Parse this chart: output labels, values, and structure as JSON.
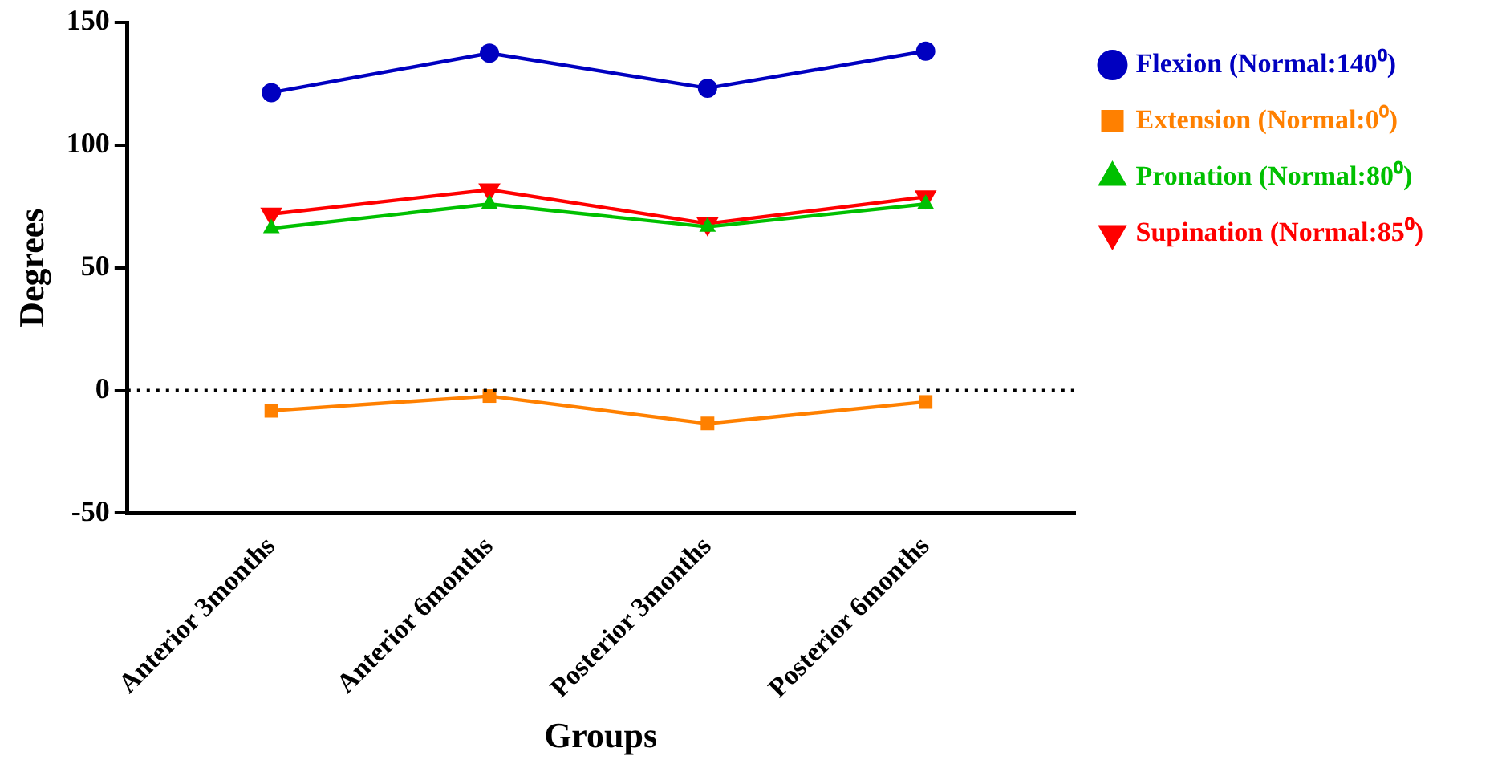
{
  "chart_data": {
    "type": "line",
    "xlabel": "Groups",
    "ylabel": "Degrees",
    "categories": [
      "Anterior 3months",
      "Anterior 6months",
      "Posterior 3months",
      "Posterior 6months"
    ],
    "series": [
      {
        "name": "Flexion (Normal:140⁰)",
        "color": "#0000c0",
        "marker": "circle",
        "values": [
          121.4,
          137.5,
          123.2,
          138.3
        ]
      },
      {
        "name": "Extension (Normal:0⁰)",
        "color": "#ff8000",
        "marker": "square",
        "values": [
          -8.3,
          -2.3,
          -13.5,
          -4.7
        ]
      },
      {
        "name": "Pronation (Normal:80⁰)",
        "color": "#00c000",
        "marker": "triangle",
        "values": [
          66.1,
          76,
          66.7,
          76
        ]
      },
      {
        "name": "Supination (Normal:85⁰)",
        "color": "#ff0000",
        "marker": "triangle-down",
        "values": [
          71.9,
          81.8,
          68,
          78.9
        ]
      }
    ],
    "ylim": [
      -50,
      150
    ],
    "yticks": [
      -50,
      0,
      50,
      100,
      150
    ],
    "ref_lines": [
      {
        "axis": "y",
        "value": 0,
        "color": "#000000",
        "line_style": "dotted"
      }
    ],
    "grid": false,
    "legend": "top right",
    "line_style": "solid"
  }
}
